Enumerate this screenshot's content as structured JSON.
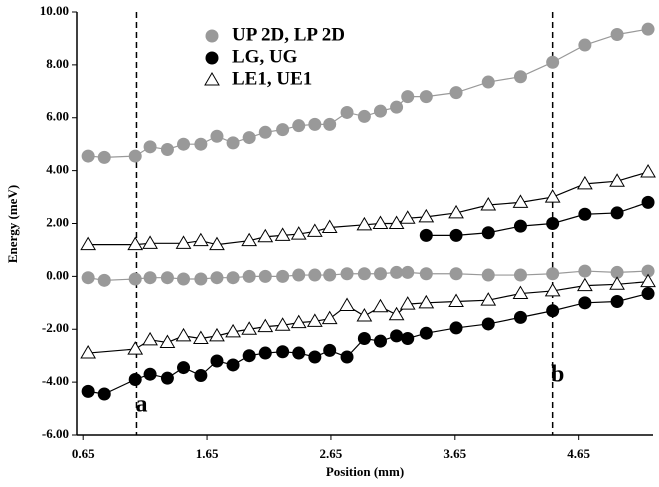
{
  "chart_data": {
    "type": "line",
    "x_label": "Position (mm)",
    "y_label": "Energy (meV)",
    "xlim": [
      0.6,
      5.25
    ],
    "ylim": [
      -6,
      10
    ],
    "xticks": [
      {
        "value": 0.65,
        "label": "0.65"
      },
      {
        "value": 1.65,
        "label": "1.65"
      },
      {
        "value": 2.65,
        "label": "2.65"
      },
      {
        "value": 3.65,
        "label": "3.65"
      },
      {
        "value": 4.65,
        "label": "4.65"
      }
    ],
    "yticks": [
      {
        "value": -6,
        "label": "-6.00"
      },
      {
        "value": -4,
        "label": "-4.00"
      },
      {
        "value": -2,
        "label": "-2.00"
      },
      {
        "value": 0,
        "label": "0.00"
      },
      {
        "value": 2,
        "label": "2.00"
      },
      {
        "value": 4,
        "label": "4.00"
      },
      {
        "value": 6,
        "label": "6.00"
      },
      {
        "value": 8,
        "label": "8.00"
      },
      {
        "value": 10,
        "label": "10.00"
      }
    ],
    "vlines": [
      {
        "x": 1.08,
        "label": "a"
      },
      {
        "x": 4.44,
        "label": "b"
      }
    ],
    "series": [
      {
        "name": "UP 2D, LP 2D",
        "color": "#999999",
        "marker": "circle",
        "fill": "#999999",
        "x": [
          0.69,
          0.82,
          1.07,
          1.19,
          1.33,
          1.46,
          1.6,
          1.73,
          1.86,
          1.99,
          2.12,
          2.26,
          2.39,
          2.52,
          2.64,
          2.78,
          2.92,
          3.05,
          3.18,
          3.27,
          3.42,
          3.66,
          3.92,
          4.18,
          4.44,
          4.7,
          4.96,
          5.21
        ],
        "values": [
          4.55,
          4.5,
          4.55,
          4.9,
          4.8,
          5.0,
          5.0,
          5.3,
          5.05,
          5.25,
          5.45,
          5.55,
          5.7,
          5.75,
          5.75,
          6.2,
          6.05,
          6.25,
          6.4,
          6.8,
          6.8,
          6.95,
          7.35,
          7.55,
          8.1,
          8.75,
          9.15,
          9.35
        ]
      },
      {
        "color": "#999999",
        "marker": "circle",
        "fill": "#999999",
        "x": [
          0.69,
          0.82,
          1.07,
          1.19,
          1.33,
          1.46,
          1.6,
          1.73,
          1.86,
          1.99,
          2.12,
          2.26,
          2.39,
          2.52,
          2.64,
          2.78,
          2.92,
          3.05,
          3.18,
          3.27,
          3.42,
          3.66,
          3.92,
          4.18,
          4.44,
          4.7,
          4.96,
          5.21
        ],
        "values": [
          -0.05,
          -0.15,
          -0.1,
          -0.05,
          -0.05,
          -0.1,
          -0.1,
          -0.05,
          -0.05,
          0.0,
          0.0,
          0.0,
          0.05,
          0.05,
          0.05,
          0.1,
          0.1,
          0.1,
          0.15,
          0.15,
          0.1,
          0.1,
          0.05,
          0.05,
          0.1,
          0.2,
          0.15,
          0.2
        ]
      },
      {
        "name": "LG, UG",
        "color": "#000000",
        "marker": "circle",
        "fill": "#000000",
        "x": [
          3.42,
          3.66,
          3.92,
          4.18,
          4.44,
          4.7,
          4.96,
          5.21
        ],
        "values": [
          1.55,
          1.55,
          1.65,
          1.9,
          2.0,
          2.35,
          2.4,
          2.8
        ]
      },
      {
        "color": "#000000",
        "marker": "circle",
        "fill": "#000000",
        "x": [
          0.69,
          0.82,
          1.07,
          1.19,
          1.33,
          1.46,
          1.6,
          1.73,
          1.86,
          1.99,
          2.12,
          2.26,
          2.39,
          2.52,
          2.64,
          2.78,
          2.92,
          3.05,
          3.18,
          3.27,
          3.42,
          3.66,
          3.92,
          4.18,
          4.44,
          4.7,
          4.96,
          5.21
        ],
        "values": [
          -4.35,
          -4.45,
          -3.9,
          -3.7,
          -3.85,
          -3.45,
          -3.75,
          -3.2,
          -3.35,
          -3.0,
          -2.9,
          -2.85,
          -2.9,
          -3.05,
          -2.8,
          -3.05,
          -2.35,
          -2.45,
          -2.25,
          -2.35,
          -2.15,
          -1.95,
          -1.8,
          -1.55,
          -1.3,
          -1.0,
          -0.95,
          -0.65
        ]
      },
      {
        "name": "LE1, UE1",
        "color": "#000000",
        "marker": "triangle",
        "fill": "#ffffff",
        "x": [
          0.69,
          1.07,
          1.19,
          1.46,
          1.6,
          1.73,
          1.99,
          2.12,
          2.26,
          2.39,
          2.52,
          2.64,
          2.92,
          3.05,
          3.18,
          3.27,
          3.42,
          3.66,
          3.92,
          4.18,
          4.44,
          4.7,
          4.96,
          5.21
        ],
        "values": [
          1.2,
          1.2,
          1.25,
          1.25,
          1.35,
          1.2,
          1.35,
          1.5,
          1.55,
          1.6,
          1.7,
          1.85,
          1.95,
          2.0,
          2.0,
          2.2,
          2.25,
          2.4,
          2.7,
          2.8,
          3.0,
          3.5,
          3.6,
          3.95
        ]
      },
      {
        "color": "#000000",
        "marker": "triangle",
        "fill": "#ffffff",
        "x": [
          0.69,
          1.07,
          1.19,
          1.33,
          1.46,
          1.6,
          1.73,
          1.86,
          1.99,
          2.12,
          2.26,
          2.39,
          2.52,
          2.64,
          2.78,
          2.92,
          3.05,
          3.18,
          3.27,
          3.42,
          3.66,
          3.92,
          4.18,
          4.44,
          4.7,
          4.96,
          5.21
        ],
        "values": [
          -2.9,
          -2.75,
          -2.4,
          -2.5,
          -2.25,
          -2.35,
          -2.25,
          -2.1,
          -2.0,
          -1.9,
          -1.85,
          -1.75,
          -1.7,
          -1.6,
          -1.1,
          -1.5,
          -1.15,
          -1.45,
          -1.05,
          -1.0,
          -0.95,
          -0.9,
          -0.65,
          -0.55,
          -0.35,
          -0.3,
          -0.2
        ]
      }
    ]
  }
}
